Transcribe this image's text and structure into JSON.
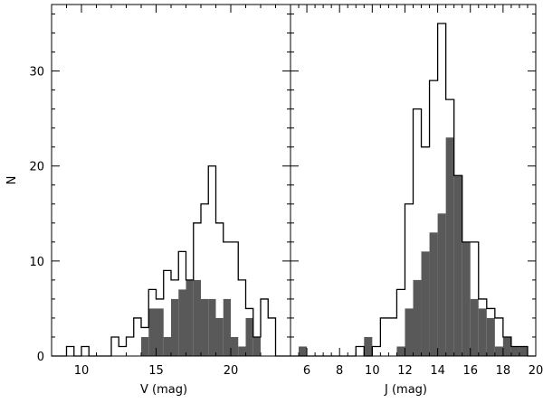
{
  "chart_data": [
    {
      "type": "bar",
      "panel": "left",
      "xlabel": "V (mag)",
      "ylabel": "N",
      "xlim": [
        8,
        24
      ],
      "ylim": [
        0,
        37
      ],
      "bin_width": 0.5,
      "xticks": [
        10,
        15,
        20
      ],
      "yticks": [
        0,
        10,
        20,
        30
      ],
      "series": [
        {
          "style": "outline",
          "bin_starts": [
            9,
            9.5,
            10,
            10.5,
            12,
            12.5,
            13,
            13.5,
            14,
            14.5,
            15,
            15.5,
            16,
            16.5,
            17,
            17.5,
            18,
            18.5,
            19,
            19.5,
            20,
            20.5,
            21,
            21.5,
            22,
            22.5
          ],
          "values": [
            1,
            0,
            1,
            0,
            2,
            1,
            2,
            4,
            3,
            7,
            6,
            9,
            8,
            11,
            8,
            14,
            16,
            20,
            14,
            12,
            12,
            8,
            5,
            2,
            6,
            4
          ]
        },
        {
          "style": "filled",
          "color": "#595959",
          "bin_starts": [
            14,
            14.5,
            15,
            15.5,
            16,
            16.5,
            17,
            17.5,
            18,
            18.5,
            19,
            19.5,
            20,
            20.5,
            21,
            21.5
          ],
          "values": [
            2,
            5,
            5,
            2,
            6,
            7,
            8,
            8,
            6,
            6,
            4,
            6,
            2,
            1,
            4,
            2
          ]
        }
      ]
    },
    {
      "type": "bar",
      "panel": "right",
      "xlabel": "J (mag)",
      "ylabel": "",
      "xlim": [
        5,
        20
      ],
      "ylim": [
        0,
        37
      ],
      "bin_width": 0.5,
      "xticks": [
        6,
        8,
        10,
        12,
        14,
        16,
        18,
        20
      ],
      "yticks": [
        0,
        10,
        20,
        30
      ],
      "series": [
        {
          "style": "outline",
          "bin_starts": [
            9,
            9.5,
            10,
            10.5,
            11,
            11.5,
            12,
            12.5,
            13,
            13.5,
            14,
            14.5,
            15,
            15.5,
            16,
            16.5,
            17,
            17.5,
            18,
            18.5,
            19
          ],
          "values": [
            1,
            0,
            1,
            4,
            4,
            7,
            16,
            26,
            22,
            29,
            35,
            27,
            19,
            12,
            12,
            6,
            5,
            4,
            2,
            1,
            1
          ]
        },
        {
          "style": "filled",
          "color": "#595959",
          "bin_starts": [
            5.5,
            9.5,
            11.5,
            12,
            12.5,
            13,
            13.5,
            14,
            14.5,
            15,
            15.5,
            16,
            16.5,
            17,
            17.5,
            18,
            18.5,
            19
          ],
          "values": [
            1,
            2,
            1,
            5,
            8,
            11,
            13,
            15,
            23,
            19,
            12,
            6,
            5,
            4,
            1,
            2,
            1,
            1
          ]
        }
      ]
    }
  ]
}
